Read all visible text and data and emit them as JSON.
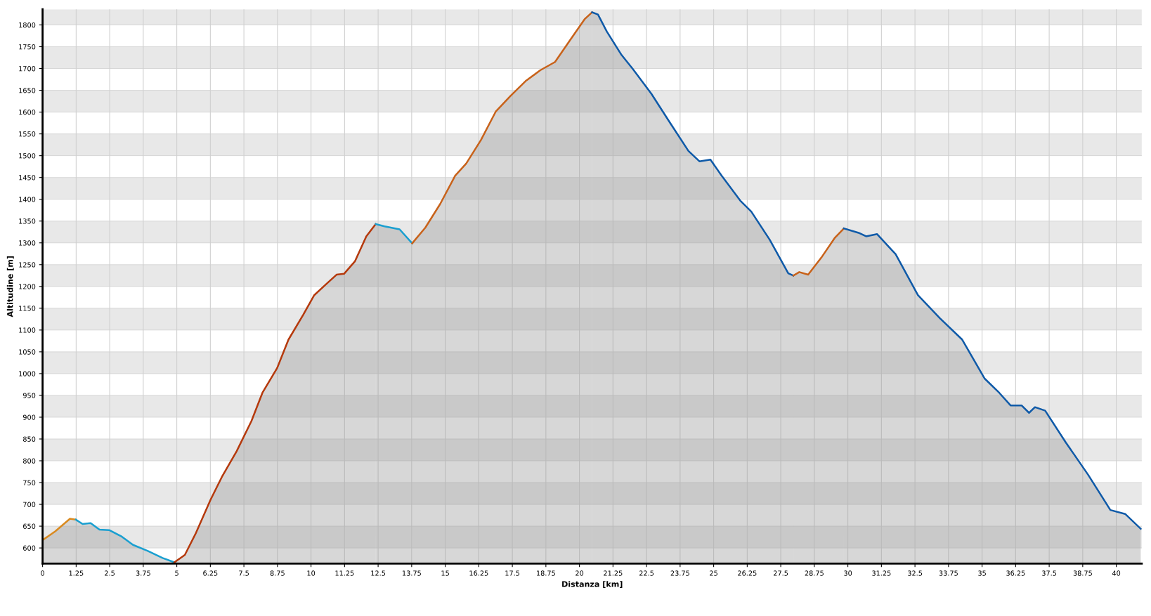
{
  "chart_data": {
    "type": "area",
    "xlabel": "Distanza [km]",
    "ylabel": "Altitudine [m]",
    "xlim": [
      0,
      40.95
    ],
    "ylim": [
      564,
      1836
    ],
    "xticks": [
      0,
      1.25,
      2.5,
      3.75,
      5,
      6.25,
      7.5,
      8.75,
      10,
      11.25,
      12.5,
      13.75,
      15,
      16.25,
      17.5,
      18.75,
      20,
      21.25,
      22.5,
      23.75,
      25,
      26.25,
      27.5,
      28.75,
      30,
      31.25,
      32.5,
      33.75,
      35,
      36.25,
      37.5,
      38.75,
      40
    ],
    "yticks": [
      600,
      650,
      700,
      750,
      800,
      850,
      900,
      950,
      1000,
      1050,
      1100,
      1150,
      1200,
      1250,
      1300,
      1350,
      1400,
      1450,
      1500,
      1550,
      1600,
      1650,
      1700,
      1750,
      1800
    ],
    "grid": true,
    "legend": false,
    "series": [
      {
        "color": "#d98a20",
        "x": [
          0,
          0.47,
          1.02,
          1.24
        ],
        "values": [
          618,
          638,
          667,
          665
        ]
      },
      {
        "color": "#1a9fd0",
        "x": [
          1.24,
          1.49,
          1.79,
          2.12,
          2.48,
          2.95,
          3.37,
          3.92,
          4.47,
          4.91
        ],
        "values": [
          665,
          655,
          657,
          642,
          641,
          626,
          607,
          593,
          577,
          567
        ]
      },
      {
        "color": "#b5390c",
        "x": [
          4.91,
          5.3,
          5.71,
          6.26,
          6.68,
          7.23,
          7.78,
          8.19,
          8.74,
          9.16,
          9.71,
          10.12,
          10.54,
          10.95,
          11.23,
          11.64,
          12.06,
          12.41
        ],
        "values": [
          567,
          584,
          634,
          711,
          763,
          822,
          891,
          956,
          1013,
          1078,
          1135,
          1180,
          1204,
          1227,
          1229,
          1258,
          1315,
          1343
        ]
      },
      {
        "color": "#1a9fd0",
        "x": [
          12.41,
          12.74,
          13.3,
          13.77
        ],
        "values": [
          1343,
          1338,
          1331,
          1299
        ]
      },
      {
        "color": "#c8621a",
        "x": [
          13.77,
          14.26,
          14.81,
          15.37,
          15.78,
          16.33,
          16.88,
          17.43,
          17.99,
          18.54,
          19.09,
          19.64,
          20.19,
          20.47
        ],
        "values": [
          1299,
          1335,
          1389,
          1454,
          1482,
          1536,
          1601,
          1637,
          1671,
          1696,
          1715,
          1764,
          1813,
          1829
        ]
      },
      {
        "color": "#0f5aa8",
        "x": [
          20.47,
          20.69,
          21.02,
          21.57,
          21.99,
          22.68,
          23.37,
          24.06,
          24.47,
          24.88,
          25.3,
          25.99,
          26.4,
          27.09,
          27.78,
          27.97
        ],
        "values": [
          1829,
          1824,
          1785,
          1731,
          1699,
          1642,
          1576,
          1511,
          1487,
          1491,
          1454,
          1397,
          1372,
          1307,
          1230,
          1225
        ]
      },
      {
        "color": "#c8621a",
        "x": [
          27.97,
          28.19,
          28.52,
          29.01,
          29.52,
          29.85
        ],
        "values": [
          1225,
          1233,
          1227,
          1266,
          1312,
          1333
        ]
      },
      {
        "color": "#0f5aa8",
        "x": [
          29.85,
          30.4,
          30.68,
          31.09,
          31.78,
          32.61,
          33.43,
          34.26,
          35.09,
          35.64,
          36.06,
          36.47,
          36.75,
          36.97,
          37.35,
          38.12,
          38.95,
          39.78,
          40.33,
          40.91
        ],
        "values": [
          1333,
          1323,
          1315,
          1320,
          1274,
          1180,
          1127,
          1078,
          989,
          956,
          927,
          927,
          910,
          923,
          915,
          842,
          768,
          687,
          678,
          644
        ]
      }
    ]
  }
}
